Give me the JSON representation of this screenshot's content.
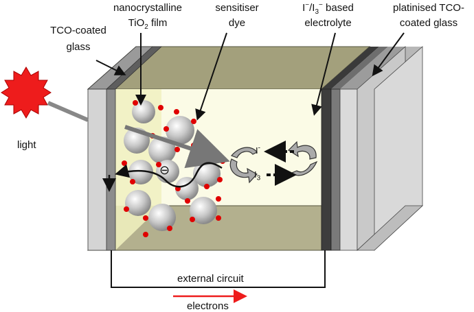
{
  "labels": {
    "tco_glass": {
      "line1": "TCO-coated",
      "line2": "glass"
    },
    "tio2": {
      "line1": "nanocrystalline",
      "line2_pre": "TiO",
      "line2_sub": "2",
      "line2_post": " film"
    },
    "dye": {
      "line1": "sensitiser",
      "line2": "dye"
    },
    "electrolyte": {
      "l1_a": "I",
      "l1_a_sup": "−",
      "l1_sep": "/I",
      "l1_b_sub": "3",
      "l1_b_sup": "−",
      "l1_post": " based",
      "line2": "electrolyte"
    },
    "pt_glass": {
      "line1": "platinised TCO-",
      "line2": "coated glass"
    },
    "light": "light",
    "external_circuit": "external circuit",
    "electrons": "electrons"
  },
  "ions": {
    "iodide": "I",
    "iodide_sup": "-",
    "triiodide": "I",
    "triiodide_sub": "3"
  },
  "symbols": {
    "electron": "⊖"
  },
  "colors": {
    "cell_top": "#a3a07c",
    "cell_bottom": "#b3b08e",
    "tio2_layer": "#f2f2c6",
    "electrolyte_fill": "#fbfbe6",
    "tco_dark": "#7d7d7d",
    "glass_light": "#d4d4d4",
    "sun": "#ee1c1c",
    "dye_dot": "#e00000",
    "electron_arrow": "#ee1c1c"
  },
  "icons": [
    "sun-icon",
    "tio2-particle",
    "dye-dot",
    "redox-cycle-arrow"
  ]
}
